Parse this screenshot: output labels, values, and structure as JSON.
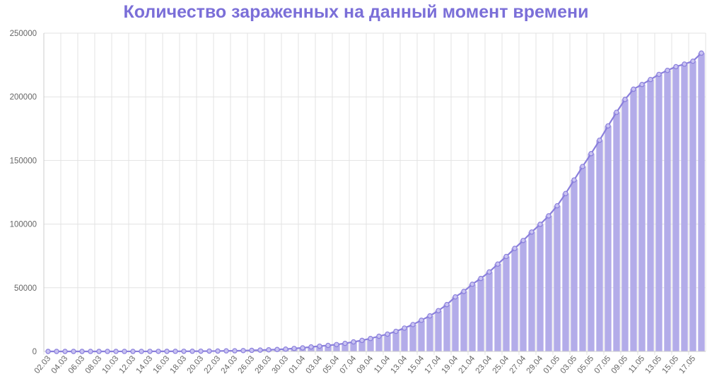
{
  "colors": {
    "title": "#7b6fd8",
    "bar": "#b3ace9",
    "line": "#8a7fdc",
    "point_fill": "#c9c3f2",
    "grid": "#e3e3e3",
    "axis_text": "#666666"
  },
  "chart_data": {
    "type": "bar",
    "title": "Количество зараженных на данный момент времени",
    "xlabel": "",
    "ylabel": "",
    "ylim": [
      0,
      250000
    ],
    "y_ticks": [
      "0",
      "50000",
      "100000",
      "150000",
      "200000",
      "250000"
    ],
    "grid": true,
    "legend": "none",
    "overlay": "line with points on the same values",
    "categories": [
      "02.03",
      "03.03",
      "04.03",
      "05.03",
      "06.03",
      "07.03",
      "08.03",
      "09.03",
      "10.03",
      "11.03",
      "12.03",
      "13.03",
      "14.03",
      "15.03",
      "16.03",
      "17.03",
      "18.03",
      "19.03",
      "20.03",
      "21.03",
      "22.03",
      "23.03",
      "24.03",
      "25.03",
      "26.03",
      "27.03",
      "28.03",
      "29.03",
      "30.03",
      "31.03",
      "01.04",
      "02.04",
      "03.04",
      "04.04",
      "05.04",
      "06.04",
      "07.04",
      "08.04",
      "09.04",
      "10.04",
      "11.04",
      "12.04",
      "13.04",
      "14.04",
      "15.04",
      "16.04",
      "17.04",
      "18.04",
      "19.04",
      "20.04",
      "21.04",
      "22.04",
      "23.04",
      "24.04",
      "25.04",
      "26.04",
      "27.04",
      "28.04",
      "29.04",
      "30.04",
      "01.05",
      "02.05",
      "03.05",
      "04.05",
      "05.05",
      "06.05",
      "07.05",
      "08.05",
      "09.05",
      "10.05",
      "11.05",
      "12.05",
      "13.05",
      "14.05",
      "15.05",
      "16.05",
      "17.05",
      "18.05"
    ],
    "x_tick_labels": [
      "02.03",
      "04.03",
      "06.03",
      "08.03",
      "10.03",
      "12.03",
      "14.03",
      "16.03",
      "18.03",
      "20.03",
      "22.03",
      "24.03",
      "26.03",
      "28.03",
      "30.03",
      "01.04",
      "03.04",
      "05.04",
      "07.04",
      "09.04",
      "11.04",
      "13.04",
      "15.04",
      "17.04",
      "19.04",
      "21.04",
      "23.04",
      "25.04",
      "27.04",
      "29.04",
      "01.05",
      "03.05",
      "05.05",
      "07.05",
      "09.05",
      "11.05",
      "13.05",
      "15.05",
      "17.05"
    ],
    "values": [
      3,
      3,
      3,
      3,
      4,
      10,
      15,
      18,
      20,
      25,
      28,
      34,
      45,
      59,
      63,
      93,
      114,
      147,
      199,
      253,
      306,
      438,
      495,
      658,
      840,
      1036,
      1264,
      1534,
      1836,
      2337,
      2777,
      3548,
      4149,
      4731,
      5389,
      6343,
      7497,
      8672,
      10131,
      11917,
      13584,
      15770,
      18328,
      21102,
      24490,
      27938,
      32008,
      36793,
      42853,
      47121,
      52763,
      57327,
      62439,
      68622,
      74588,
      80949,
      87147,
      93806,
      99859,
      106498,
      114431,
      124054,
      134687,
      145268,
      155370,
      165929,
      177160,
      187859,
      197959,
      205999,
      209688,
      213589,
      217617,
      220781,
      223693,
      225697,
      228000,
      234360
    ]
  }
}
